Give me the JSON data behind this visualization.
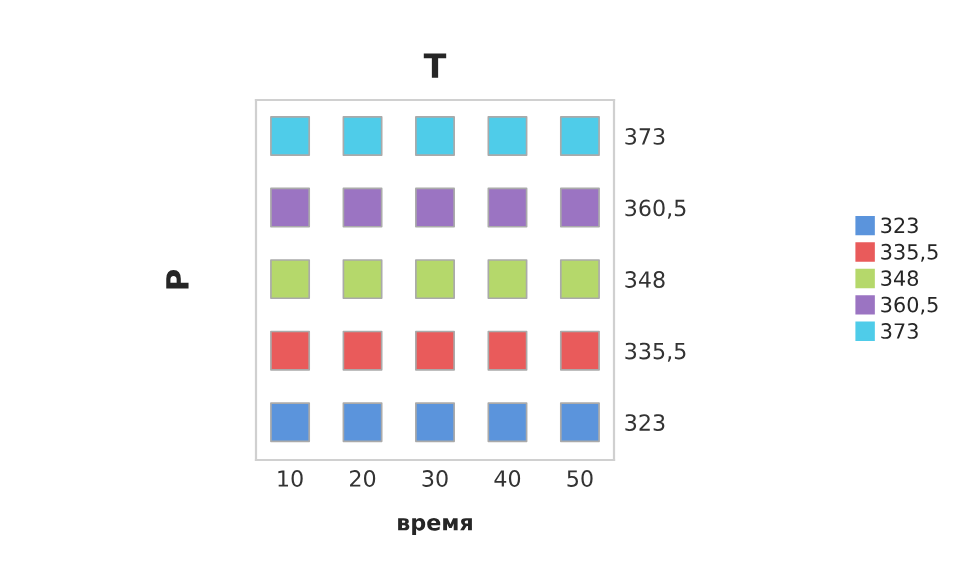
{
  "chart_data": {
    "type": "scatter",
    "title": "T",
    "xlabel": "время",
    "ylabel": "P",
    "x": [
      10,
      20,
      30,
      40,
      50
    ],
    "series": [
      {
        "name": "323",
        "color": "#5b94dc",
        "values": [
          323,
          323,
          323,
          323,
          323
        ]
      },
      {
        "name": "335,5",
        "color": "#e95b5b",
        "values": [
          335.5,
          335.5,
          335.5,
          335.5,
          335.5
        ]
      },
      {
        "name": "348",
        "color": "#b5d86b",
        "values": [
          348,
          348,
          348,
          348,
          348
        ]
      },
      {
        "name": "360,5",
        "color": "#9b74c2",
        "values": [
          360.5,
          360.5,
          360.5,
          360.5,
          360.5
        ]
      },
      {
        "name": "373",
        "color": "#4fcce9",
        "values": [
          373,
          373,
          373,
          373,
          373
        ]
      }
    ],
    "xlim": [
      5.3,
      54.7
    ],
    "xticks": [
      10,
      20,
      30,
      40,
      50
    ],
    "ylim": [
      316.4,
      379.3
    ],
    "yticks": [
      323,
      {
        "value": 335.5,
        "label": "335,5"
      },
      348,
      {
        "value": 360.5,
        "label": "360,5"
      },
      373
    ],
    "marker": "square",
    "grid": false,
    "legend": "right"
  }
}
